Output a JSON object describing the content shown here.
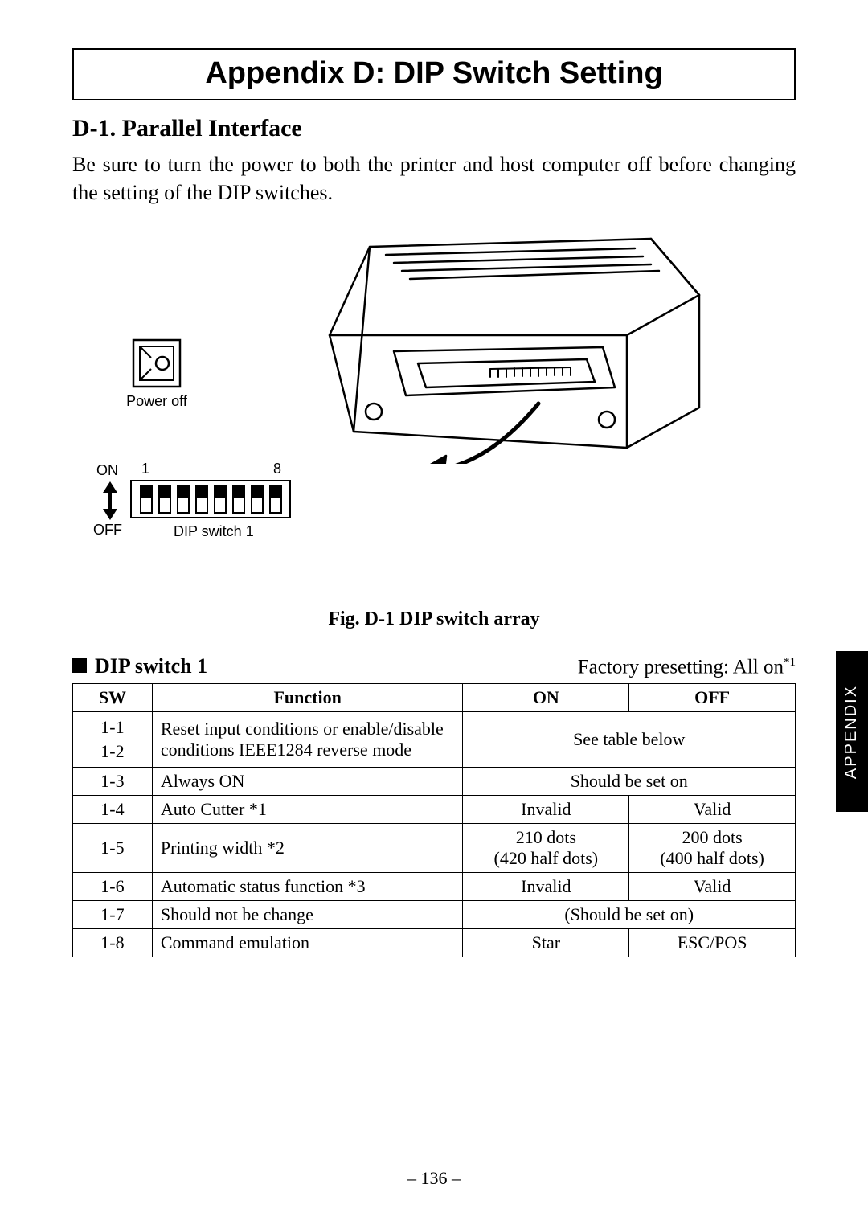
{
  "title": "Appendix D: DIP Switch Setting",
  "section_heading": "D-1. Parallel Interface",
  "intro": "Be sure to turn the power to both the printer and host computer off before changing the setting of the DIP switches.",
  "figure": {
    "power_off_label": "Power off",
    "on_label": "ON",
    "off_label": "OFF",
    "num_left": "1",
    "num_right": "8",
    "dip_caption": "DIP switch 1",
    "caption": "Fig. D-1 DIP switch array",
    "switch_count": 8
  },
  "table_heading": {
    "marker": "■",
    "title": "DIP switch 1",
    "factory_text": "Factory presetting: All on",
    "factory_sup": "*1"
  },
  "table": {
    "headers": {
      "sw": "SW",
      "fn": "Function",
      "on": "ON",
      "off": "OFF"
    },
    "rows": [
      {
        "sw": "1-1\n1-2",
        "fn": "Reset input conditions or enable/disable conditions IEEE1284 reverse mode",
        "span": "See table below"
      },
      {
        "sw": "1-3",
        "fn": "Always ON",
        "span": "Should be set on"
      },
      {
        "sw": "1-4",
        "fn": "Auto Cutter *1",
        "on": "Invalid",
        "off": "Valid"
      },
      {
        "sw": "1-5",
        "fn": "Printing width *2",
        "on": "210 dots\n(420 half dots)",
        "off": "200 dots\n(400 half dots)"
      },
      {
        "sw": "1-6",
        "fn": "Automatic status function *3",
        "on": "Invalid",
        "off": "Valid"
      },
      {
        "sw": "1-7",
        "fn": "Should not be change",
        "span": "(Should be set on)"
      },
      {
        "sw": "1-8",
        "fn": "Command emulation",
        "on": "Star",
        "off": "ESC/POS"
      }
    ]
  },
  "side_tab": "APPENDIX",
  "page_num": "– 136 –",
  "colors": {
    "text": "#000000",
    "background": "#ffffff",
    "tab_bg": "#000000",
    "tab_fg": "#ffffff"
  }
}
